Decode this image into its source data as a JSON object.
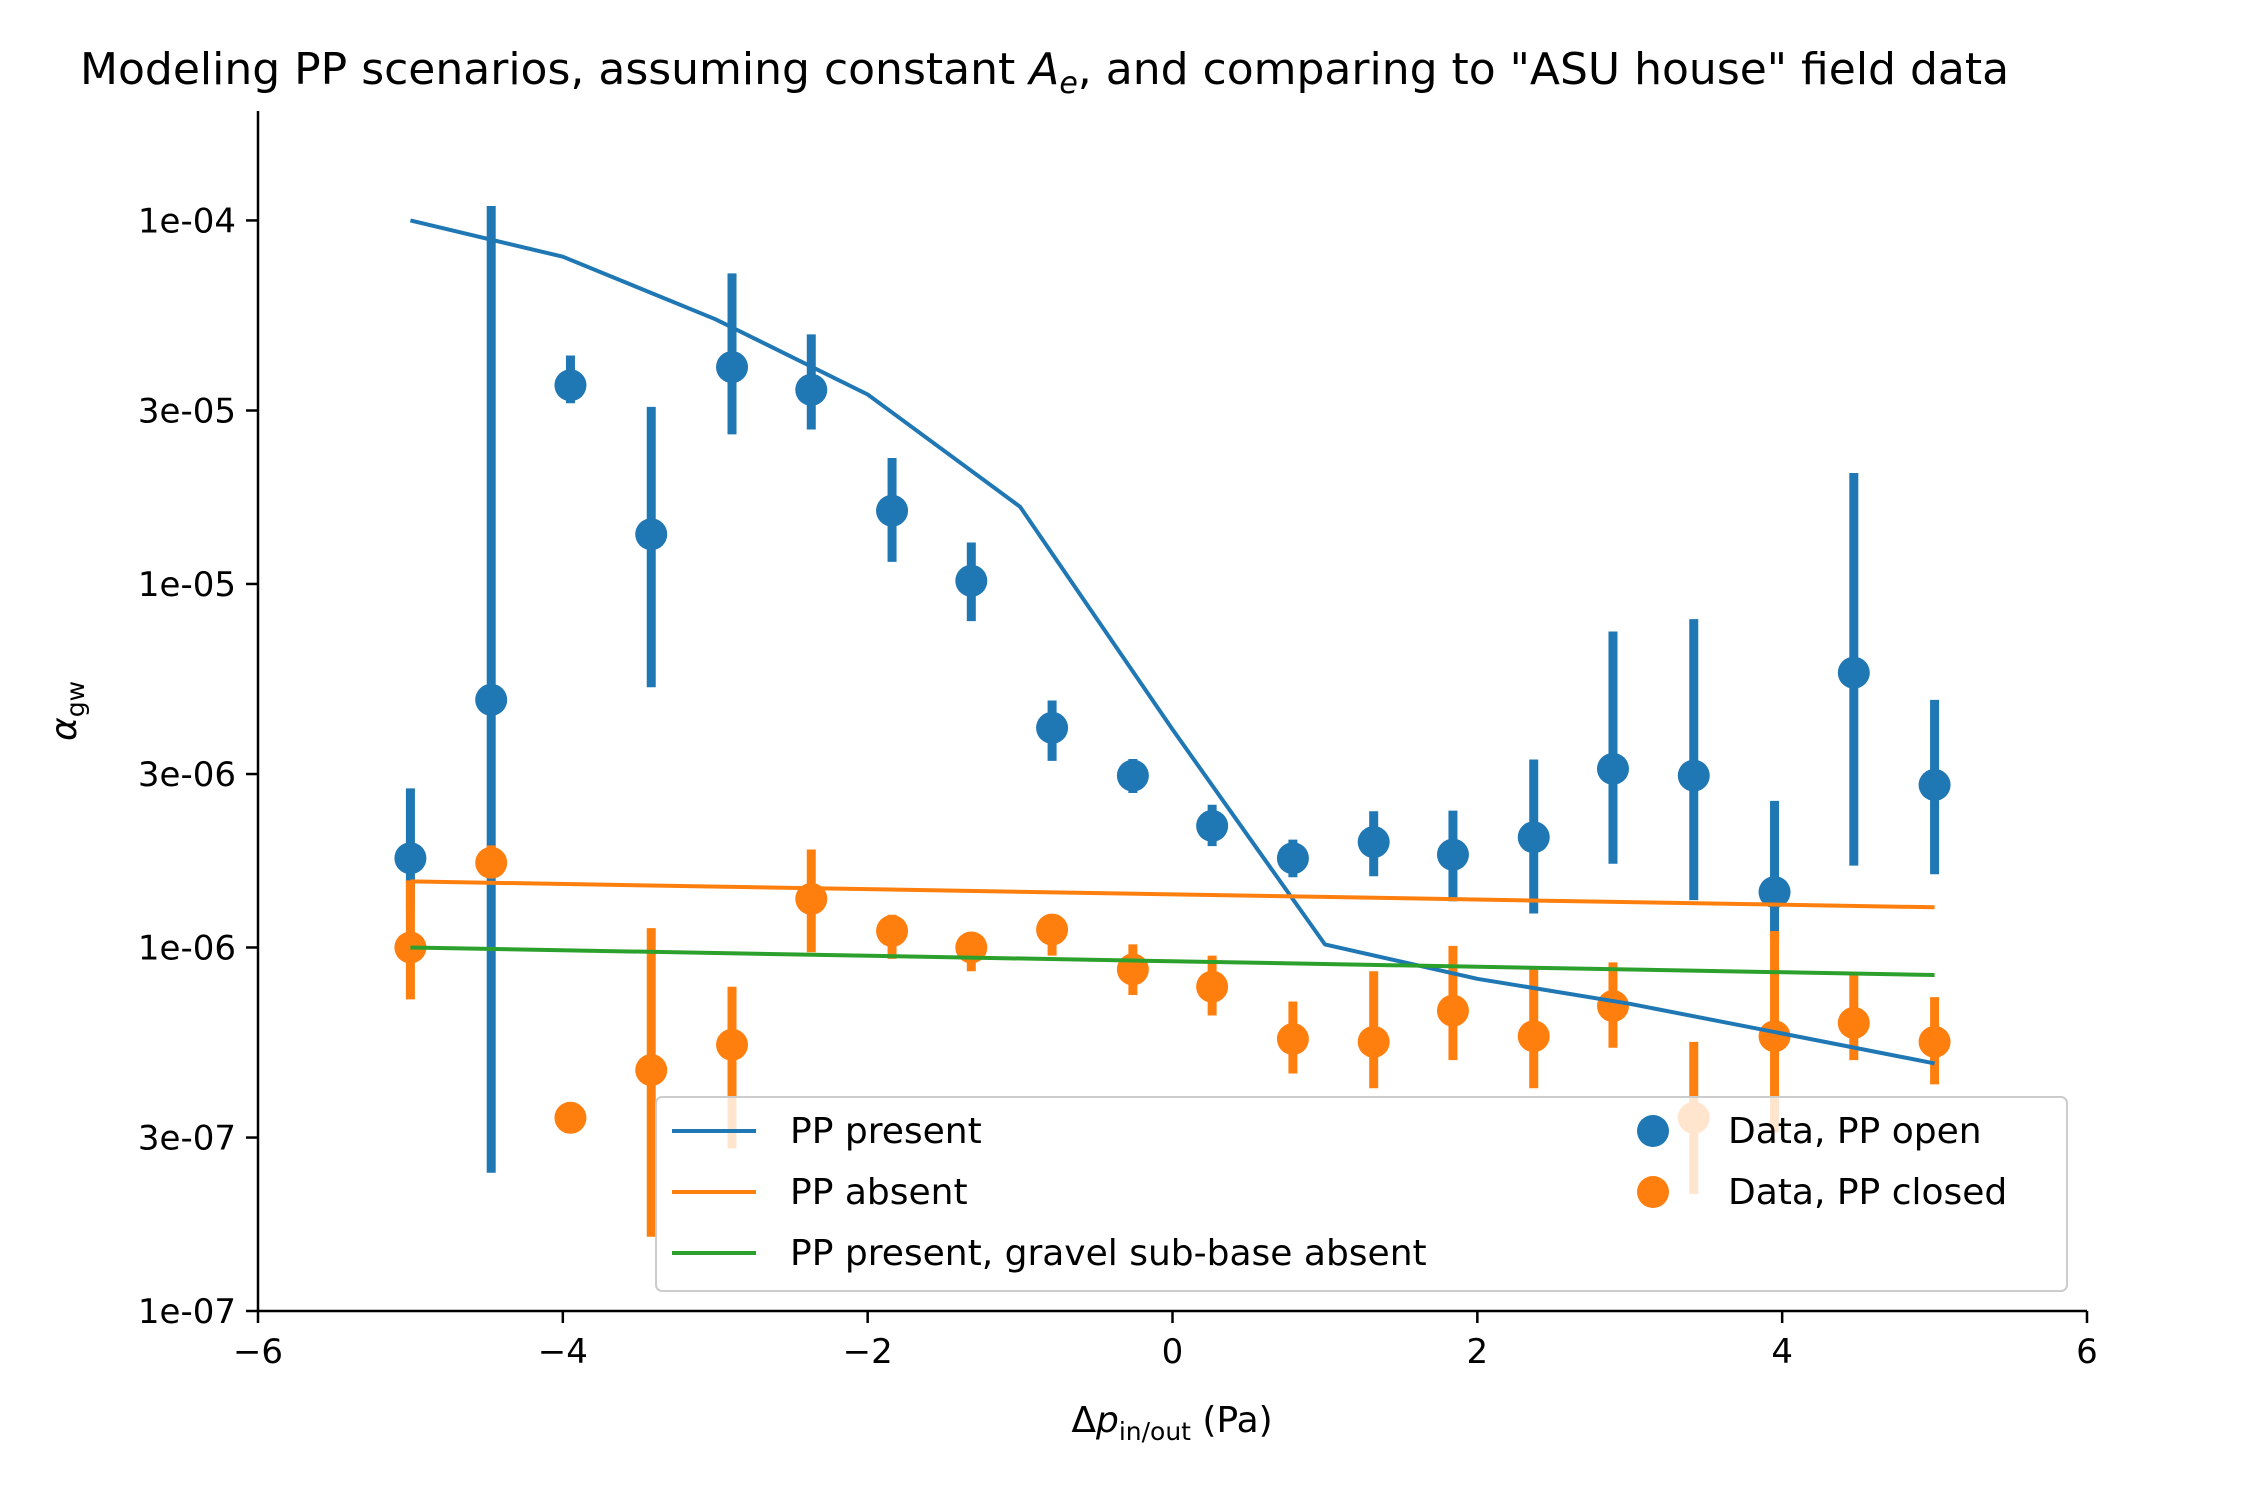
{
  "chart_data": {
    "type": "scatter",
    "title_parts": [
      "Modeling PP scenarios, assuming constant ",
      "A",
      "e",
      ", and comparing to \"ASU house\" field data"
    ],
    "xlabel_parts": [
      "Δ",
      "p",
      "in/out",
      " (Pa)"
    ],
    "ylabel_parts": [
      "α",
      "gw"
    ],
    "xlim": [
      -6,
      6
    ],
    "ylim": [
      1e-07,
      0.0002
    ],
    "yscale": "log",
    "xticks": [
      -6,
      -4,
      -2,
      0,
      2,
      4,
      6
    ],
    "xtick_labels": [
      "−6",
      "−4",
      "−2",
      "0",
      "2",
      "4",
      "6"
    ],
    "yticks": [
      1e-07,
      3e-07,
      1e-06,
      3e-06,
      1e-05,
      3e-05,
      0.0001
    ],
    "ytick_labels": [
      "1e-07",
      "3e-07",
      "1e-06",
      "3e-06",
      "1e-05",
      "3e-05",
      "1e-04"
    ],
    "grid": false,
    "legend_position": "lower-right",
    "colors": {
      "blue": "#1f77b4",
      "orange": "#ff7f0e",
      "green": "#2ca02c"
    },
    "line_series": [
      {
        "name": "PP present",
        "color": "#1f77b4",
        "x": [
          -5,
          -4,
          -3,
          -2,
          -1,
          0,
          1,
          2,
          3,
          4,
          5
        ],
        "y": [
          0.0001,
          7.95e-05,
          5.35e-05,
          3.32e-05,
          1.63e-05,
          3.98e-06,
          1.02e-06,
          8.2e-07,
          7e-07,
          5.8e-07,
          4.8e-07
        ]
      },
      {
        "name": "PP absent",
        "color": "#ff7f0e",
        "x": [
          -5,
          5
        ],
        "y": [
          1.52e-06,
          1.29e-06
        ]
      },
      {
        "name": "PP present, gravel sub-base absent",
        "color": "#2ca02c",
        "x": [
          -5,
          5
        ],
        "y": [
          1e-06,
          8.4e-07
        ]
      }
    ],
    "scatter_series": [
      {
        "name": "Data, PP open",
        "color": "#1f77b4",
        "x": [
          -5.0,
          -4.47,
          -3.95,
          -3.42,
          -2.89,
          -2.37,
          -1.84,
          -1.32,
          -0.79,
          -0.26,
          0.26,
          0.79,
          1.32,
          1.84,
          2.37,
          2.89,
          3.42,
          3.95,
          4.47,
          5.0
        ],
        "y": [
          1.76e-06,
          4.8e-06,
          3.52e-05,
          1.37e-05,
          3.95e-05,
          3.42e-05,
          1.59e-05,
          1.02e-05,
          4.02e-06,
          2.97e-06,
          2.16e-06,
          1.76e-06,
          1.95e-06,
          1.8e-06,
          2.01e-06,
          3.1e-06,
          2.97e-06,
          1.42e-06,
          5.7e-06,
          2.8e-06
        ],
        "yerr_low": [
          1.26e-06,
          2.4e-07,
          3.14e-05,
          5.2e-06,
          2.58e-05,
          2.66e-05,
          1.15e-05,
          7.9e-06,
          3.26e-06,
          2.66e-06,
          1.9e-06,
          1.56e-06,
          1.57e-06,
          1.34e-06,
          1.24e-06,
          1.7e-06,
          1.35e-06,
          1.05e-06,
          1.68e-06,
          1.59e-06
        ],
        "yerr_high": [
          2.74e-06,
          0.00010956,
          4.25e-05,
          3.07e-05,
          7.15e-05,
          4.86e-05,
          2.22e-05,
          1.3e-05,
          4.78e-06,
          3.3e-06,
          2.47e-06,
          1.98e-06,
          2.37e-06,
          2.38e-06,
          3.29e-06,
          7.4e-06,
          8e-06,
          2.53e-06,
          2.02e-05,
          4.8e-06
        ]
      },
      {
        "name": "Data, PP closed",
        "color": "#ff7f0e",
        "x": [
          -5.0,
          -4.47,
          -3.95,
          -3.42,
          -2.89,
          -2.37,
          -1.84,
          -1.32,
          -0.79,
          -0.26,
          0.26,
          0.79,
          1.32,
          1.84,
          2.37,
          2.89,
          3.42,
          3.95,
          4.47,
          5.0
        ],
        "y": [
          1e-06,
          1.71e-06,
          3.4e-07,
          4.6e-07,
          5.4e-07,
          1.36e-06,
          1.11e-06,
          1e-06,
          1.12e-06,
          8.7e-07,
          7.8e-07,
          5.6e-07,
          5.5e-07,
          6.7e-07,
          5.7e-07,
          6.9e-07,
          3.4e-07,
          5.7e-07,
          6.2e-07,
          5.5e-07
        ],
        "yerr_low": [
          7.2e-07,
          1.55e-06,
          3.4e-07,
          1.6e-07,
          2.8e-07,
          9.7e-07,
          9.3e-07,
          8.6e-07,
          9.5e-07,
          7.4e-07,
          6.5e-07,
          4.5e-07,
          4.1e-07,
          4.9e-07,
          4.1e-07,
          5.3e-07,
          2.1e-07,
          3.1e-07,
          4.9e-07,
          4.2e-07
        ],
        "yerr_high": [
          1.53e-06,
          1.91e-06,
          3.4e-07,
          1.13e-06,
          7.8e-07,
          1.86e-06,
          1.23e-06,
          1.07e-06,
          1.21e-06,
          1.02e-06,
          9.5e-07,
          7.1e-07,
          8.6e-07,
          1.01e-06,
          8.8e-07,
          9.1e-07,
          5.5e-07,
          1.11e-06,
          8.5e-07,
          7.3e-07
        ]
      }
    ]
  }
}
